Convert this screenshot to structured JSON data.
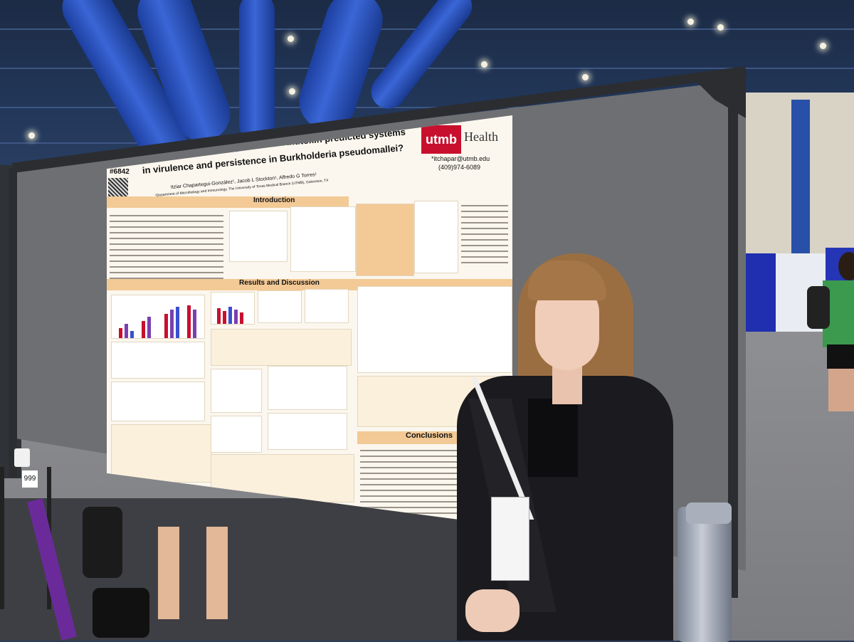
{
  "scene": {
    "poster": {
      "poster_number": "#6842",
      "title_line1": "What is the role of HigBA Toxin-Antitoxin predicted systems",
      "title_line2": "in virulence and persistence in Burkholderia pseudomallei?",
      "authors": "Itziar Chapartegui-González¹, Jacob L Stockton¹, Alfredo G Torres¹",
      "affiliation": "¹Department of Microbiology and Immunology, The University of Texas Medical Branch (UTMB), Galveston, TX",
      "logo_utmb": "utmb",
      "logo_health": "Health",
      "contact_email": "*itchapar@utmb.edu",
      "contact_phone": "(409)974-6089",
      "section_introduction": "Introduction",
      "section_results": "Results and Discussion",
      "section_conclusions": "Conclusions"
    },
    "stand_number": "999",
    "colors": {
      "utmb_red": "#c8102e",
      "section_header": "#f3c995",
      "curtain_blue": "#1f2fb0"
    }
  }
}
